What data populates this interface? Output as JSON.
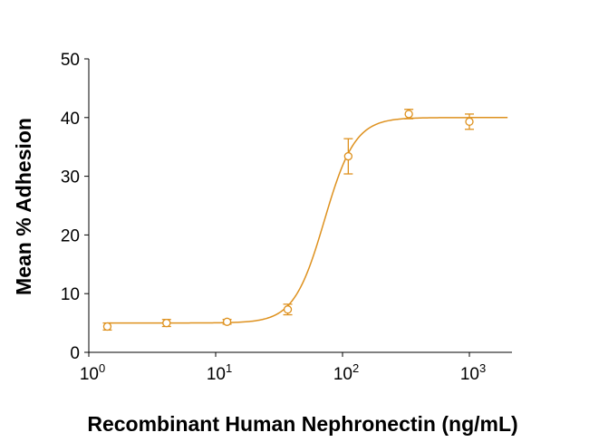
{
  "chart_data": {
    "type": "scatter",
    "title": "",
    "xlabel": "Recombinant Human Nephronectin (ng/mL)",
    "ylabel": "Mean % Adhesion",
    "xscale": "log",
    "xlim": [
      1,
      2000
    ],
    "ylim": [
      0,
      50
    ],
    "grid": false,
    "color": "#DE911E",
    "x_tick_values": [
      1,
      10,
      100,
      1000
    ],
    "x_tick_labels": [
      {
        "base": "10",
        "exp": "0"
      },
      {
        "base": "10",
        "exp": "1"
      },
      {
        "base": "10",
        "exp": "2"
      },
      {
        "base": "10",
        "exp": "3"
      }
    ],
    "y_ticks": [
      0,
      10,
      20,
      30,
      40,
      50
    ],
    "y_tick_labels": [
      "0",
      "10",
      "20",
      "30",
      "40",
      "50"
    ],
    "series": [
      {
        "x": [
          1.4,
          4.1,
          12.3,
          37,
          111,
          333,
          1000
        ],
        "y": [
          4.4,
          5.0,
          5.2,
          7.3,
          33.4,
          40.6,
          39.3
        ],
        "error": [
          0.6,
          0.6,
          0.4,
          0.9,
          3.0,
          0.8,
          1.3
        ]
      }
    ],
    "fit_curve": {
      "model": "4PL",
      "bottom": 5.0,
      "top": 40.0,
      "ec50": 72,
      "hill": 3.6
    }
  }
}
